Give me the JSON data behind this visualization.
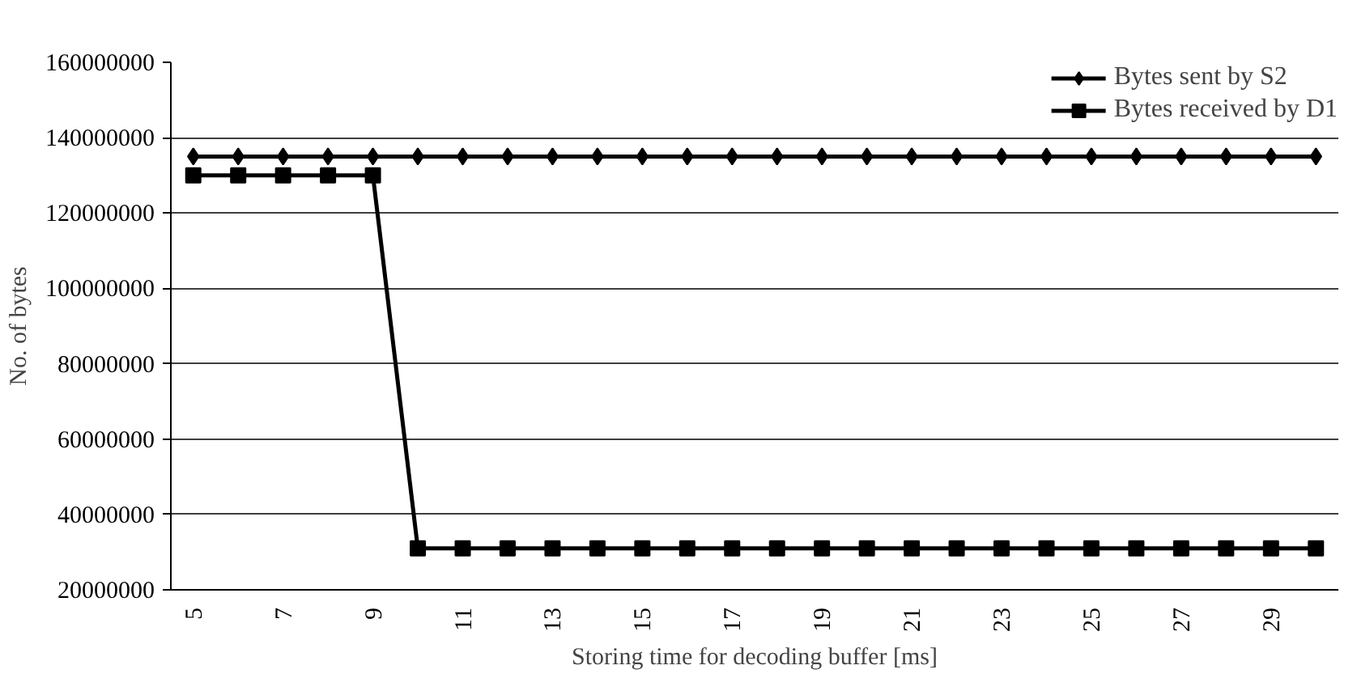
{
  "chart_data": {
    "type": "line",
    "xlabel": "Storing time for decoding buffer [ms]",
    "ylabel": "No. of bytes",
    "categories": [
      "5",
      null,
      "7",
      null,
      "9",
      null,
      "11",
      null,
      "13",
      null,
      "15",
      null,
      "17",
      null,
      "19",
      null,
      "21",
      null,
      "23",
      null,
      "25",
      null,
      "27",
      null,
      "29",
      null
    ],
    "series": [
      {
        "name": "Bytes sent by S2",
        "color": "#000000",
        "marker": "diamond",
        "values": [
          135000000,
          135000000,
          135000000,
          135000000,
          135000000,
          135000000,
          135000000,
          135000000,
          135000000,
          135000000,
          135000000,
          135000000,
          135000000,
          135000000,
          135000000,
          135000000,
          135000000,
          135000000,
          135000000,
          135000000,
          135000000,
          135000000,
          135000000,
          135000000,
          135000000,
          135000000
        ]
      },
      {
        "name": "Bytes received by D1",
        "color": "#000000",
        "marker": "square",
        "values": [
          130000000,
          130000000,
          130000000,
          130000000,
          130000000,
          31000000,
          31000000,
          31000000,
          31000000,
          31000000,
          31000000,
          31000000,
          31000000,
          31000000,
          31000000,
          31000000,
          31000000,
          31000000,
          31000000,
          31000000,
          31000000,
          31000000,
          31000000,
          31000000,
          31000000,
          31000000
        ]
      }
    ],
    "ylim": [
      20000000,
      160000000
    ],
    "yticks": [
      20000000,
      40000000,
      60000000,
      80000000,
      100000000,
      120000000,
      140000000,
      160000000
    ],
    "grid": "y",
    "legend": "top right",
    "line_style": "solid"
  }
}
